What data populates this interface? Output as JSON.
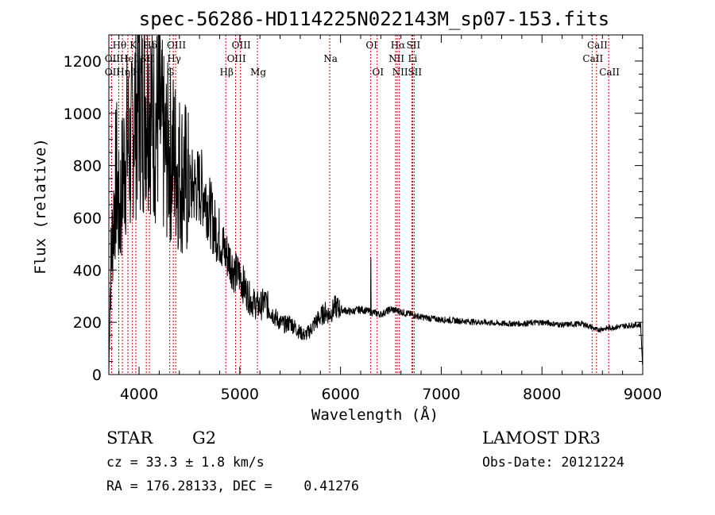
{
  "chart_data": {
    "type": "line",
    "title": "spec-56286-HD114225N022143M_sp07-153.fits",
    "xlabel": "Wavelength (Å)",
    "ylabel": "Flux (relative)",
    "xlim": [
      3700,
      9000
    ],
    "ylim": [
      0,
      1300
    ],
    "xticks": [
      4000,
      5000,
      6000,
      7000,
      8000,
      9000
    ],
    "yticks": [
      0,
      200,
      400,
      600,
      800,
      1000,
      1200
    ],
    "spectrum_anchors": {
      "x": [
        3700,
        3705,
        3720,
        3740,
        3760,
        3780,
        3800,
        3830,
        3860,
        3890,
        3920,
        3950,
        3975,
        4000,
        4030,
        4060,
        4100,
        4150,
        4200,
        4260,
        4300,
        4340,
        4400,
        4450,
        4500,
        4550,
        4600,
        4650,
        4700,
        4750,
        4800,
        4850,
        4900,
        4950,
        5000,
        5050,
        5100,
        5150,
        5200,
        5250,
        5300,
        5350,
        5400,
        5450,
        5500,
        5550,
        5600,
        5650,
        5700,
        5750,
        5800,
        5850,
        5890,
        5950,
        6000,
        6100,
        6200,
        6250,
        6300,
        6400,
        6500,
        6600,
        6700,
        6800,
        7000,
        7200,
        7400,
        7600,
        7800,
        8000,
        8200,
        8400,
        8500,
        8540,
        8600,
        8700,
        8800,
        8900,
        8980,
        9000
      ],
      "y": [
        0,
        150,
        420,
        560,
        700,
        760,
        600,
        720,
        850,
        900,
        820,
        1050,
        1000,
        1080,
        1000,
        1070,
        1080,
        950,
        980,
        840,
        850,
        840,
        780,
        760,
        710,
        720,
        720,
        700,
        630,
        560,
        530,
        470,
        440,
        390,
        380,
        330,
        290,
        270,
        260,
        280,
        250,
        220,
        200,
        190,
        200,
        180,
        160,
        150,
        170,
        200,
        220,
        240,
        230,
        260,
        250,
        240,
        250,
        245,
        240,
        230,
        250,
        240,
        230,
        220,
        210,
        205,
        200,
        195,
        195,
        200,
        190,
        195,
        180,
        170,
        175,
        180,
        185,
        190,
        190,
        20
      ]
    },
    "emission_spike": {
      "x": 6300,
      "y": 450
    },
    "spectral_lines": [
      {
        "name": "Hθ",
        "wl": 3798,
        "row": 1
      },
      {
        "name": "K",
        "wl": 3934,
        "row": 1
      },
      {
        "name": "Hδ",
        "wl": 4102,
        "row": 1
      },
      {
        "name": "OIII",
        "wl": 4363,
        "row": 1
      },
      {
        "name": "OIII",
        "wl": 5007,
        "row": 1
      },
      {
        "name": "OI",
        "wl": 6300,
        "row": 1
      },
      {
        "name": "Hα",
        "wl": 6563,
        "row": 1
      },
      {
        "name": "SII",
        "wl": 6716,
        "row": 1
      },
      {
        "name": "CaII",
        "wl": 8542,
        "row": 1
      },
      {
        "name": "OII",
        "wl": 3727,
        "row": 2
      },
      {
        "name": "HeI",
        "wl": 3889,
        "row": 2
      },
      {
        "name": "SII",
        "wl": 4072,
        "row": 2
      },
      {
        "name": "Hγ",
        "wl": 4340,
        "row": 2
      },
      {
        "name": "OIII",
        "wl": 4959,
        "row": 2
      },
      {
        "name": "Na",
        "wl": 5893,
        "row": 2
      },
      {
        "name": "NII",
        "wl": 6548,
        "row": 2
      },
      {
        "name": "Li",
        "wl": 6708,
        "row": 2
      },
      {
        "name": "CaII",
        "wl": 8498,
        "row": 2
      },
      {
        "name": "OII",
        "wl": 3727,
        "row": 3
      },
      {
        "name": "Hη",
        "wl": 3835,
        "row": 3
      },
      {
        "name": "H",
        "wl": 3968,
        "row": 3
      },
      {
        "name": "G",
        "wl": 4305,
        "row": 3
      },
      {
        "name": "Hβ",
        "wl": 4861,
        "row": 3
      },
      {
        "name": "Mg",
        "wl": 5175,
        "row": 3
      },
      {
        "name": "OI",
        "wl": 6364,
        "row": 3
      },
      {
        "name": "NII",
        "wl": 6584,
        "row": 3
      },
      {
        "name": "SII",
        "wl": 6731,
        "row": 3
      },
      {
        "name": "CaII",
        "wl": 8662,
        "row": 3
      }
    ],
    "line_color": "#cc0000",
    "grid": false
  },
  "info": {
    "class": "STAR",
    "subclass": "G2",
    "survey": "LAMOST DR3",
    "cz": "cz = 33.3 ± 1.8 km/s",
    "obs_date": "Obs-Date: 20121224",
    "radec": "RA = 176.28133, DEC =    0.41276"
  }
}
